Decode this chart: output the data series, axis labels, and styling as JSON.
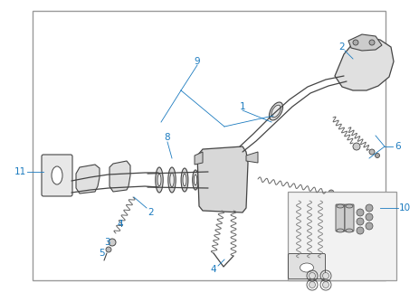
{
  "bg_color": "#ffffff",
  "border_color": "#999999",
  "label_color": "#1a7abf",
  "line_color": "#444444",
  "fig_width": 4.63,
  "fig_height": 3.34,
  "dpi": 100,
  "border": [
    0.085,
    0.03,
    0.88,
    0.94
  ]
}
